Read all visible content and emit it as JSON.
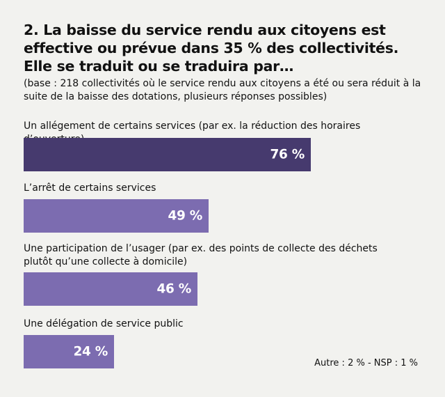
{
  "header": {
    "title": "2. La baisse du service rendu aux citoyens est effective ou prévue dans 35 % des collectivités. Elle se traduit ou se traduira par…",
    "subtitle": "(base : 218 collectivités où le service rendu aux citoyens a été ou sera réduit à la suite de la baisse des dotations, plusieurs réponses possibles)"
  },
  "chart_data": {
    "type": "bar",
    "orientation": "horizontal",
    "categories": [
      "Un allégement de certains services (par ex. la réduction des horaires d’ouverture)",
      "L’arrêt de certains services",
      "Une participation de l’usager (par ex. des points de collecte des déchets plutôt qu’une collecte à domicile)",
      "Une délégation de service public"
    ],
    "values": [
      76,
      49,
      46,
      24
    ],
    "value_labels": [
      "76 %",
      "49 %",
      "46 %",
      "24 %"
    ],
    "unit": "%",
    "xlim": [
      0,
      100
    ],
    "colors": [
      "#463a6e",
      "#7c6cb0",
      "#7c6cb0",
      "#7c6cb0"
    ]
  },
  "footnote": "Autre : 2 % - NSP : 1 %"
}
